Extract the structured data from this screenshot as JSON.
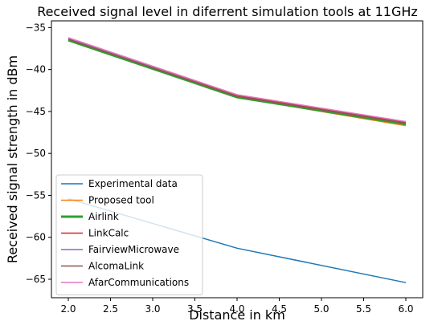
{
  "chart_data": {
    "type": "line",
    "title": "Received signal level in diferrent simulation tools at 11GHz",
    "xlabel": "Distance in km",
    "ylabel": "Received signal strength in dBm",
    "xlim": [
      1.8,
      6.2
    ],
    "ylim": [
      -67.2,
      -34.2
    ],
    "xticks": [
      2.0,
      2.5,
      3.0,
      3.5,
      4.0,
      4.5,
      5.0,
      5.5,
      6.0
    ],
    "xtick_labels": [
      "2.0",
      "2.5",
      "3.0",
      "3.5",
      "4.0",
      "4.5",
      "5.0",
      "5.5",
      "6.0"
    ],
    "yticks": [
      -35,
      -40,
      -45,
      -50,
      -55,
      -60,
      -65
    ],
    "ytick_labels": [
      "−35",
      "−40",
      "−45",
      "−50",
      "−55",
      "−60",
      "−65"
    ],
    "grid": false,
    "legend_position": "lower-left",
    "x": [
      2,
      4,
      6
    ],
    "series": [
      {
        "name": "Experimental data",
        "color": "#1f77b4",
        "values": [
          -55.4,
          -61.3,
          -65.4
        ]
      },
      {
        "name": "Proposed tool",
        "color": "#ff7f0e",
        "values": [
          -36.5,
          -43.3,
          -46.7
        ]
      },
      {
        "name": "Airlink",
        "color": "#2ca02c",
        "values": [
          -36.5,
          -43.3,
          -46.5
        ],
        "bold": true
      },
      {
        "name": "LinkCalc",
        "color": "#d62728",
        "values": [
          -36.3,
          -43.1,
          -46.3
        ]
      },
      {
        "name": "FairviewMicrowave",
        "color": "#9467bd",
        "values": [
          -36.3,
          -43.2,
          -46.4
        ]
      },
      {
        "name": "AlcomaLink",
        "color": "#8c564b",
        "values": [
          -36.4,
          -43.2,
          -46.4
        ]
      },
      {
        "name": "AfarCommunications",
        "color": "#e377c2",
        "values": [
          -36.2,
          -43.0,
          -46.2
        ]
      }
    ]
  }
}
